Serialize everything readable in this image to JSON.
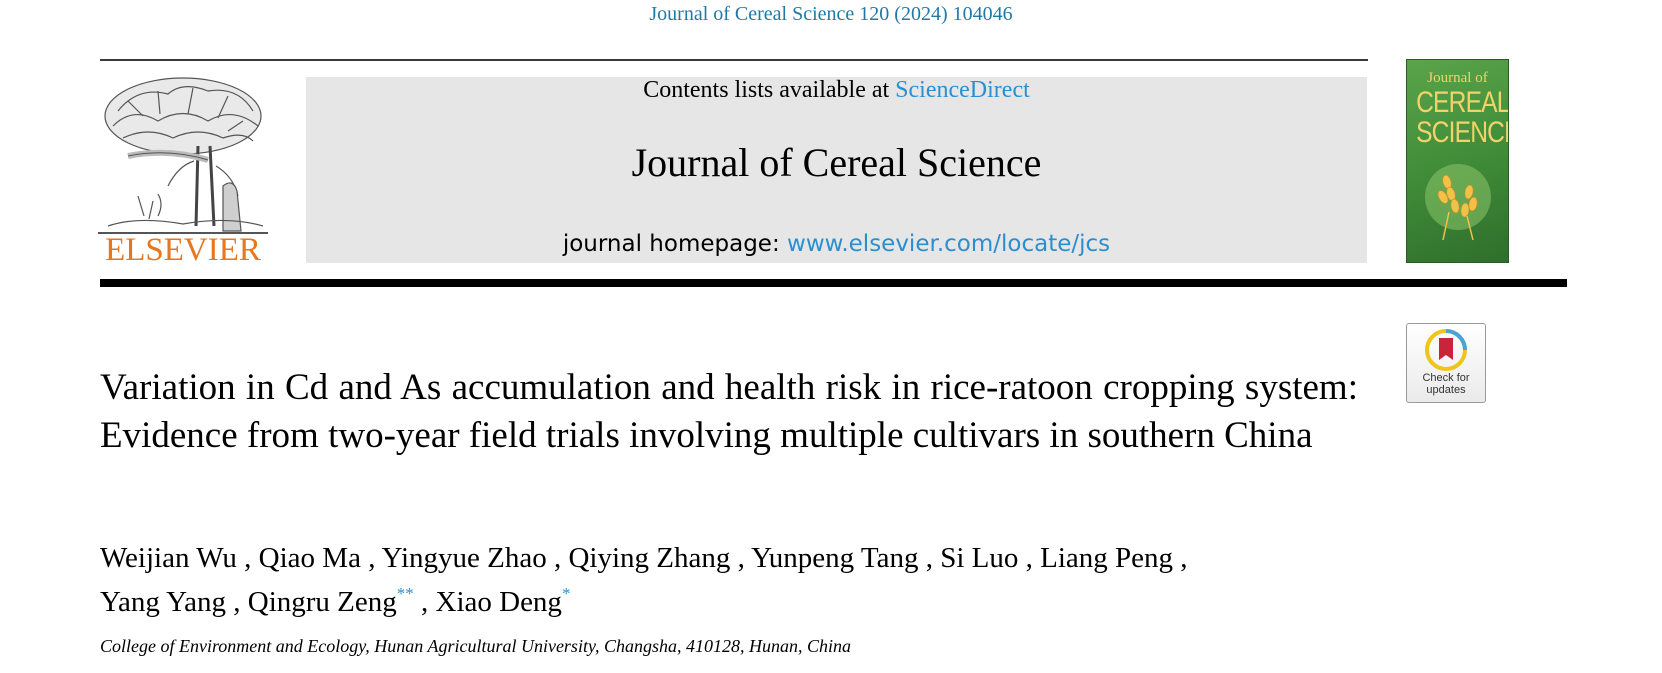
{
  "header": {
    "citation": "Journal of Cereal Science 120 (2024) 104046"
  },
  "masthead": {
    "contents_prefix": "Contents lists available at ",
    "contents_link": "ScienceDirect",
    "journal_name": "Journal of Cereal Science",
    "homepage_prefix": "journal homepage: ",
    "homepage_link": "www.elsevier.com/locate/jcs"
  },
  "publisher": {
    "wordmark": "ELSEVIER",
    "logo_icon": "elsevier-tree-logo",
    "color": "#e8761d"
  },
  "cover": {
    "line1": "Journal of",
    "line2": "CEREAL",
    "line3": "SCIENCE",
    "icon": "wheat-cover-icon",
    "color": "#4a9a40"
  },
  "check_updates": {
    "label_line1": "Check for",
    "label_line2": "updates",
    "icon": "bookmark-icon"
  },
  "article": {
    "title": "Variation in Cd and As accumulation and health risk in rice-ratoon cropping system: Evidence from two-year field trials involving multiple cultivars in southern China",
    "authors": [
      {
        "name": "Weijian Wu",
        "mark": ""
      },
      {
        "name": "Qiao Ma",
        "mark": ""
      },
      {
        "name": "Yingyue Zhao",
        "mark": ""
      },
      {
        "name": "Qiying Zhang",
        "mark": ""
      },
      {
        "name": "Yunpeng Tang",
        "mark": ""
      },
      {
        "name": "Si Luo",
        "mark": ""
      },
      {
        "name": "Liang Peng",
        "mark": ""
      },
      {
        "name": "Yang Yang",
        "mark": ""
      },
      {
        "name": "Qingru Zeng",
        "mark": "**"
      },
      {
        "name": "Xiao Deng",
        "mark": "*"
      }
    ],
    "affiliation": "College of Environment and Ecology, Hunan Agricultural University, Changsha, 410128, Hunan, China"
  },
  "colors": {
    "link": "#2a8fd0",
    "citation": "#1f79a8",
    "masthead_bg": "#e6e6e6"
  }
}
